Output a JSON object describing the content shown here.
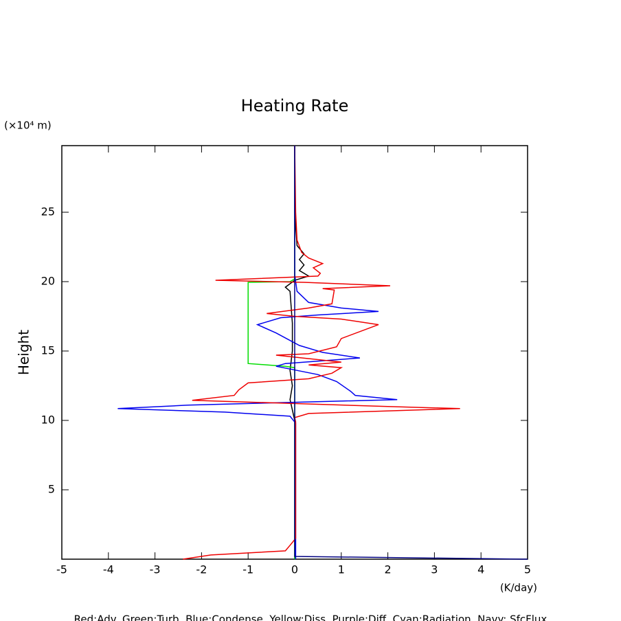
{
  "chart_data": {
    "type": "line",
    "title": "Heating Rate",
    "y_unit": "(×10⁴ m)",
    "x_unit": "(K/day)",
    "ylabel": "Height",
    "legend_text": "Red:Adv.  Green:Turb.  Blue:Condense.  Yellow:Diss.  Purple:Diff.  Cyan:Radiation.  Navy: SfcFlux",
    "xlim": [
      -5,
      5
    ],
    "ylim": [
      0,
      29.8
    ],
    "xticks": [
      -5,
      -4,
      -3,
      -2,
      -1,
      0,
      1,
      2,
      3,
      4,
      5
    ],
    "yticks": [
      5,
      10,
      15,
      20,
      25
    ],
    "series": [
      {
        "color": "#000000",
        "x": [
          0,
          0,
          -0.1,
          -0.05,
          -0.1,
          -0.05,
          -0.05,
          -0.1,
          -0.2,
          0,
          0.3,
          0.1,
          0.2,
          0.1,
          0.2,
          0.05,
          0,
          0
        ],
        "y": [
          0,
          10,
          11.5,
          12.5,
          13.6,
          15,
          17,
          19.3,
          19.6,
          20.1,
          20.4,
          20.8,
          21.2,
          21.6,
          22,
          22.6,
          25,
          29.8
        ]
      },
      {
        "color": "#00dd00",
        "x": [
          0,
          0,
          -0.2,
          -1.0,
          -1.0,
          -0.1,
          0,
          0
        ],
        "y": [
          0,
          13.8,
          13.9,
          14.1,
          19.95,
          20.0,
          20.2,
          29.8
        ]
      },
      {
        "color": "#0000ee",
        "x": [
          0.02,
          0.02,
          -0.1,
          -1.5,
          -3.8,
          -2.3,
          2.2,
          1.3,
          1.2,
          0.9,
          0.5,
          -0.1,
          -0.4,
          -0.2,
          1.4,
          0.6,
          0.1,
          -0.4,
          -0.8,
          -0.3,
          0.5,
          1.8,
          1.0,
          0.3,
          0.05,
          0,
          0
        ],
        "y": [
          0,
          9.8,
          10.3,
          10.6,
          10.85,
          11.1,
          11.5,
          11.8,
          12.1,
          12.8,
          13.3,
          13.7,
          13.9,
          14.1,
          14.5,
          14.9,
          15.4,
          16.3,
          16.9,
          17.4,
          17.6,
          17.85,
          18.1,
          18.5,
          19.3,
          20.5,
          29.8
        ]
      },
      {
        "color": "#ee0000",
        "x": [
          -2.4,
          -1.8,
          -0.2,
          -0.1,
          0.02,
          0.02,
          0,
          0.3,
          3.55,
          2.0,
          -2.2,
          -1.3,
          -1.2,
          -1.0,
          0.3,
          0.8,
          1.0,
          0.3,
          1.0,
          -0.4,
          0.3,
          0.9,
          1.0,
          1.8,
          1.0,
          0,
          -0.6,
          0.3,
          0.8,
          0.85,
          0.6,
          2.05,
          0.2,
          -1.7,
          0.5,
          0.55,
          0.4,
          0.6,
          0.3,
          0.15,
          0.05,
          0.02,
          0
        ],
        "y": [
          0,
          0.3,
          0.6,
          1.0,
          1.5,
          9.9,
          10.2,
          10.5,
          10.85,
          11.0,
          11.45,
          11.8,
          12.2,
          12.7,
          13.0,
          13.4,
          13.8,
          14.0,
          14.2,
          14.7,
          14.8,
          15.3,
          15.9,
          16.9,
          17.3,
          17.5,
          17.7,
          18.1,
          18.4,
          19.4,
          19.5,
          19.7,
          19.95,
          20.1,
          20.4,
          20.6,
          21.0,
          21.3,
          21.7,
          22.1,
          23,
          25,
          29.8
        ]
      },
      {
        "color": "#000080",
        "x": [
          0,
          0,
          5
        ],
        "y": [
          29.8,
          0.2,
          0
        ]
      }
    ]
  }
}
